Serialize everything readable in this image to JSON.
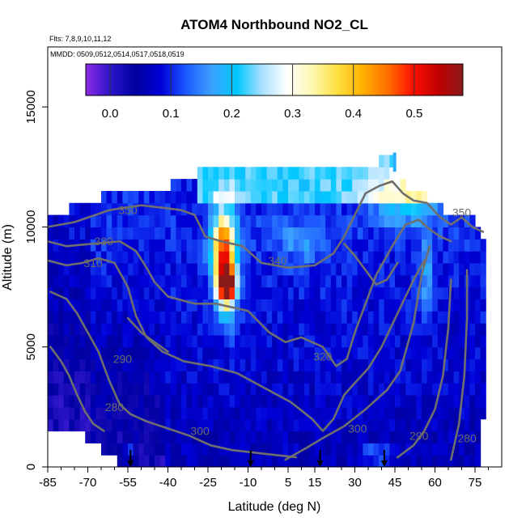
{
  "chart_data": {
    "type": "heatmap",
    "title": "ATOM4 Northbound NO2_CL",
    "flights_label": "Flts: 7,8,9,10,11,12",
    "mmdd_label": "MMDD: 0509,0512,0514,0517,0518,0519",
    "xlabel": "Latitude (deg N)",
    "ylabel": "Altitude (m)",
    "xlim": [
      -85,
      85
    ],
    "ylim": [
      0,
      17500
    ],
    "x_ticks": [
      -85,
      -70,
      -55,
      -40,
      -25,
      -10,
      5,
      15,
      30,
      45,
      60,
      75
    ],
    "y_ticks": [
      0,
      5000,
      10000,
      15000
    ],
    "colorbar": {
      "range": [
        -0.04,
        0.58
      ],
      "ticks": [
        0.0,
        0.1,
        0.2,
        0.3,
        0.4,
        0.5
      ],
      "tick_labels": [
        "0.0",
        "0.1",
        "0.2",
        "0.3",
        "0.4",
        "0.5"
      ],
      "colors": [
        "#8b2be2",
        "#2a14c8",
        "#0000a0",
        "#0000d8",
        "#1e5aff",
        "#3ca0ff",
        "#00c8ff",
        "#a8e0ff",
        "#ffffff",
        "#fff8b0",
        "#ffe040",
        "#ffb000",
        "#ff7000",
        "#ff1000",
        "#c00000",
        "#8b1a1a"
      ]
    },
    "contour_labels": [
      {
        "text": "350",
        "lat": -55,
        "alt": 10700
      },
      {
        "text": "330",
        "lat": -64,
        "alt": 9400
      },
      {
        "text": "310",
        "lat": -68,
        "alt": 8500
      },
      {
        "text": "340",
        "lat": 1,
        "alt": 8600
      },
      {
        "text": "350",
        "lat": 70,
        "alt": 10600
      },
      {
        "text": "320",
        "lat": 18,
        "alt": 4600
      },
      {
        "text": "290",
        "lat": -57,
        "alt": 4500
      },
      {
        "text": "280",
        "lat": -60,
        "alt": 2500
      },
      {
        "text": "300",
        "lat": -28,
        "alt": 1500
      },
      {
        "text": "300",
        "lat": 31,
        "alt": 1600
      },
      {
        "text": "290",
        "lat": 54,
        "alt": 1300
      },
      {
        "text": "280",
        "lat": 72,
        "alt": 1200
      }
    ],
    "airport_arrows_lat": [
      -54,
      -9,
      17,
      41
    ],
    "max_feature": {
      "lat": -18,
      "alt": 7600,
      "value": 0.55
    }
  }
}
